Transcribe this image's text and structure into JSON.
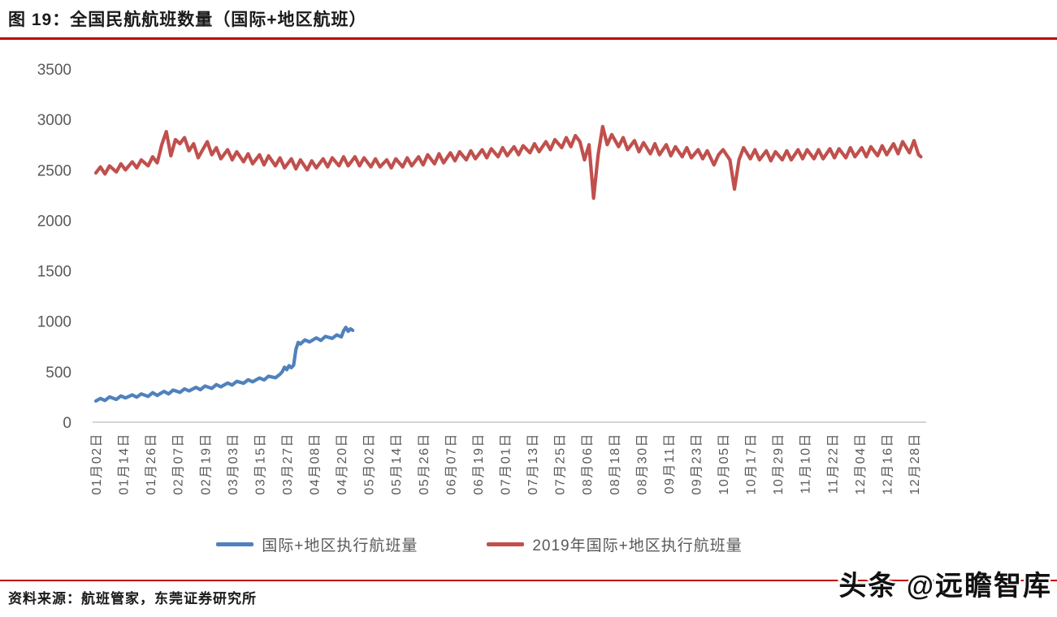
{
  "page": {
    "title": "图 19：全国民航航班数量（国际+地区航班）",
    "source": "资料来源：航班管家，东莞证券研究所",
    "watermark": "头条 @远瞻智库"
  },
  "colors": {
    "accent_red": "#C00000",
    "axis_text": "#595959",
    "axis_line": "#C6C6C6",
    "series_blue": "#4F81BD",
    "series_red": "#C0504D"
  },
  "chart_data": {
    "type": "line",
    "title": "全国民航航班数量（国际+地区航班）",
    "xlabel": "",
    "ylabel": "",
    "grid": false,
    "legend_position": "bottom",
    "y_axis": {
      "min": 0,
      "max": 3500,
      "step": 500,
      "tick_labels": [
        "0",
        "500",
        "1000",
        "1500",
        "2000",
        "2500",
        "3000",
        "3500"
      ]
    },
    "x_axis": {
      "tick_interval_days": 12,
      "tick_labels": [
        "01月02日",
        "01月14日",
        "01月26日",
        "02月07日",
        "02月19日",
        "03月03日",
        "03月15日",
        "03月27日",
        "04月08日",
        "04月20日",
        "05月02日",
        "05月14日",
        "05月26日",
        "06月07日",
        "06月19日",
        "07月01日",
        "07月13日",
        "07月25日",
        "08月06日",
        "08月18日",
        "08月30日",
        "09月11日",
        "09月23日",
        "10月05日",
        "10月17日",
        "10月29日",
        "11月10日",
        "11月22日",
        "12月04日",
        "12月16日",
        "12月28日"
      ]
    },
    "series": [
      {
        "name": "国际+地区执行航班量",
        "color": "#4F81BD",
        "points_day_value": [
          [
            0,
            210
          ],
          [
            2,
            235
          ],
          [
            4,
            215
          ],
          [
            6,
            250
          ],
          [
            9,
            225
          ],
          [
            11,
            260
          ],
          [
            13,
            240
          ],
          [
            16,
            270
          ],
          [
            18,
            248
          ],
          [
            20,
            280
          ],
          [
            23,
            255
          ],
          [
            25,
            292
          ],
          [
            27,
            265
          ],
          [
            30,
            305
          ],
          [
            32,
            280
          ],
          [
            34,
            318
          ],
          [
            37,
            295
          ],
          [
            39,
            330
          ],
          [
            41,
            310
          ],
          [
            44,
            345
          ],
          [
            46,
            322
          ],
          [
            48,
            358
          ],
          [
            51,
            335
          ],
          [
            53,
            372
          ],
          [
            55,
            350
          ],
          [
            58,
            388
          ],
          [
            60,
            368
          ],
          [
            62,
            405
          ],
          [
            65,
            385
          ],
          [
            67,
            420
          ],
          [
            69,
            400
          ],
          [
            72,
            438
          ],
          [
            74,
            418
          ],
          [
            76,
            455
          ],
          [
            79,
            440
          ],
          [
            81,
            475
          ],
          [
            82,
            500
          ],
          [
            83,
            545
          ],
          [
            84,
            520
          ],
          [
            85,
            560
          ],
          [
            86,
            540
          ],
          [
            87,
            565
          ],
          [
            88,
            720
          ],
          [
            89,
            790
          ],
          [
            90,
            775
          ],
          [
            92,
            815
          ],
          [
            94,
            795
          ],
          [
            97,
            835
          ],
          [
            99,
            810
          ],
          [
            101,
            850
          ],
          [
            104,
            830
          ],
          [
            106,
            865
          ],
          [
            108,
            845
          ],
          [
            109,
            905
          ],
          [
            110,
            940
          ],
          [
            111,
            900
          ],
          [
            112,
            925
          ],
          [
            113,
            910
          ]
        ]
      },
      {
        "name": "2019年国际+地区执行航班量",
        "color": "#C0504D",
        "points_day_value": [
          [
            0,
            2470
          ],
          [
            2,
            2530
          ],
          [
            4,
            2460
          ],
          [
            6,
            2540
          ],
          [
            9,
            2480
          ],
          [
            11,
            2560
          ],
          [
            13,
            2500
          ],
          [
            16,
            2580
          ],
          [
            18,
            2520
          ],
          [
            20,
            2600
          ],
          [
            23,
            2540
          ],
          [
            25,
            2630
          ],
          [
            27,
            2570
          ],
          [
            29,
            2750
          ],
          [
            31,
            2880
          ],
          [
            33,
            2640
          ],
          [
            35,
            2800
          ],
          [
            37,
            2760
          ],
          [
            39,
            2820
          ],
          [
            41,
            2690
          ],
          [
            43,
            2760
          ],
          [
            45,
            2620
          ],
          [
            47,
            2700
          ],
          [
            49,
            2780
          ],
          [
            51,
            2650
          ],
          [
            53,
            2720
          ],
          [
            55,
            2610
          ],
          [
            58,
            2700
          ],
          [
            60,
            2600
          ],
          [
            62,
            2680
          ],
          [
            65,
            2580
          ],
          [
            67,
            2660
          ],
          [
            69,
            2560
          ],
          [
            72,
            2650
          ],
          [
            74,
            2550
          ],
          [
            76,
            2640
          ],
          [
            79,
            2540
          ],
          [
            81,
            2620
          ],
          [
            83,
            2520
          ],
          [
            86,
            2610
          ],
          [
            88,
            2510
          ],
          [
            90,
            2600
          ],
          [
            93,
            2500
          ],
          [
            95,
            2590
          ],
          [
            97,
            2520
          ],
          [
            100,
            2610
          ],
          [
            102,
            2530
          ],
          [
            104,
            2620
          ],
          [
            107,
            2540
          ],
          [
            109,
            2630
          ],
          [
            111,
            2540
          ],
          [
            114,
            2630
          ],
          [
            116,
            2540
          ],
          [
            118,
            2620
          ],
          [
            121,
            2530
          ],
          [
            123,
            2610
          ],
          [
            125,
            2530
          ],
          [
            128,
            2600
          ],
          [
            130,
            2520
          ],
          [
            132,
            2610
          ],
          [
            135,
            2530
          ],
          [
            137,
            2620
          ],
          [
            139,
            2540
          ],
          [
            142,
            2630
          ],
          [
            144,
            2550
          ],
          [
            146,
            2650
          ],
          [
            149,
            2560
          ],
          [
            151,
            2660
          ],
          [
            153,
            2570
          ],
          [
            156,
            2670
          ],
          [
            158,
            2590
          ],
          [
            160,
            2680
          ],
          [
            163,
            2600
          ],
          [
            165,
            2690
          ],
          [
            167,
            2610
          ],
          [
            170,
            2700
          ],
          [
            172,
            2620
          ],
          [
            174,
            2710
          ],
          [
            177,
            2630
          ],
          [
            179,
            2720
          ],
          [
            181,
            2640
          ],
          [
            184,
            2730
          ],
          [
            186,
            2650
          ],
          [
            188,
            2740
          ],
          [
            191,
            2670
          ],
          [
            193,
            2760
          ],
          [
            195,
            2680
          ],
          [
            198,
            2780
          ],
          [
            200,
            2700
          ],
          [
            202,
            2800
          ],
          [
            205,
            2720
          ],
          [
            207,
            2820
          ],
          [
            209,
            2730
          ],
          [
            211,
            2840
          ],
          [
            213,
            2780
          ],
          [
            215,
            2600
          ],
          [
            217,
            2750
          ],
          [
            219,
            2220
          ],
          [
            221,
            2650
          ],
          [
            223,
            2930
          ],
          [
            225,
            2750
          ],
          [
            227,
            2850
          ],
          [
            230,
            2730
          ],
          [
            232,
            2820
          ],
          [
            234,
            2700
          ],
          [
            237,
            2790
          ],
          [
            239,
            2680
          ],
          [
            241,
            2770
          ],
          [
            244,
            2660
          ],
          [
            246,
            2760
          ],
          [
            248,
            2650
          ],
          [
            251,
            2750
          ],
          [
            253,
            2640
          ],
          [
            255,
            2730
          ],
          [
            258,
            2630
          ],
          [
            260,
            2720
          ],
          [
            262,
            2620
          ],
          [
            265,
            2700
          ],
          [
            267,
            2610
          ],
          [
            269,
            2690
          ],
          [
            272,
            2550
          ],
          [
            274,
            2650
          ],
          [
            276,
            2700
          ],
          [
            279,
            2600
          ],
          [
            281,
            2310
          ],
          [
            283,
            2600
          ],
          [
            285,
            2720
          ],
          [
            288,
            2610
          ],
          [
            290,
            2700
          ],
          [
            292,
            2600
          ],
          [
            295,
            2690
          ],
          [
            297,
            2590
          ],
          [
            299,
            2680
          ],
          [
            302,
            2600
          ],
          [
            304,
            2690
          ],
          [
            306,
            2600
          ],
          [
            309,
            2700
          ],
          [
            311,
            2610
          ],
          [
            313,
            2700
          ],
          [
            316,
            2610
          ],
          [
            318,
            2700
          ],
          [
            320,
            2610
          ],
          [
            323,
            2710
          ],
          [
            325,
            2620
          ],
          [
            327,
            2710
          ],
          [
            330,
            2620
          ],
          [
            332,
            2720
          ],
          [
            334,
            2630
          ],
          [
            337,
            2720
          ],
          [
            339,
            2630
          ],
          [
            341,
            2730
          ],
          [
            344,
            2640
          ],
          [
            346,
            2740
          ],
          [
            348,
            2650
          ],
          [
            351,
            2760
          ],
          [
            353,
            2660
          ],
          [
            355,
            2780
          ],
          [
            358,
            2670
          ],
          [
            360,
            2790
          ],
          [
            362,
            2650
          ],
          [
            363,
            2630
          ]
        ]
      }
    ]
  }
}
